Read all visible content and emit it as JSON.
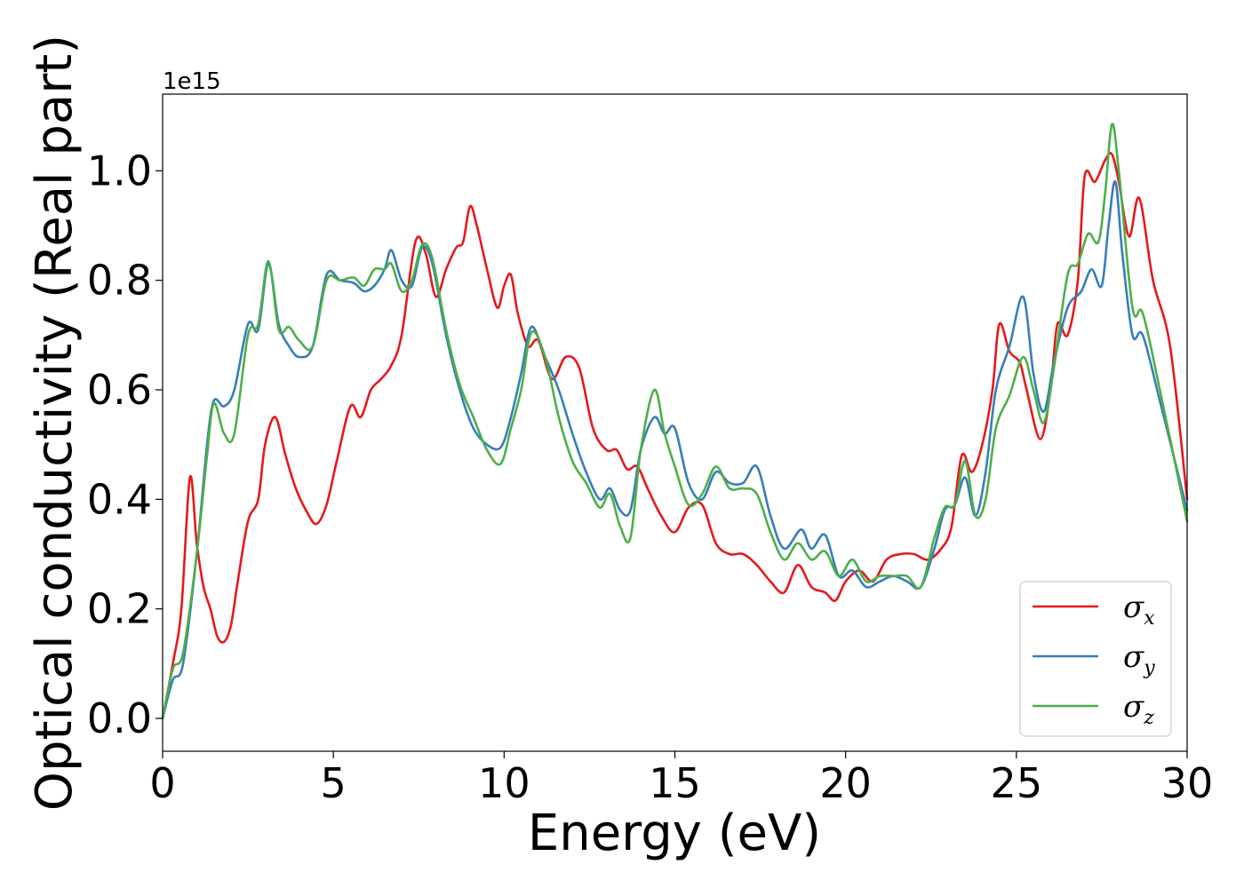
{
  "chart_data": {
    "type": "line",
    "title": "",
    "xlabel": "Energy (eV)",
    "ylabel": "Optical conductivity (Real part)",
    "y_offset_label": "1e15",
    "xlim": [
      0,
      30
    ],
    "ylim": [
      -0.06,
      1.14
    ],
    "x_ticks": [
      0,
      5,
      10,
      15,
      20,
      25,
      30
    ],
    "x_tick_labels": [
      "0",
      "5",
      "10",
      "15",
      "20",
      "25",
      "30"
    ],
    "y_ticks": [
      0.0,
      0.2,
      0.4,
      0.6,
      0.8,
      1.0
    ],
    "y_tick_labels": [
      "0.0",
      "0.2",
      "0.4",
      "0.6",
      "0.8",
      "1.0"
    ],
    "grid": false,
    "legend_position": "bottom-right",
    "series": [
      {
        "name": "σx",
        "legend_symbol": "σ",
        "legend_subscript": "x",
        "color": "#e41a1c",
        "points": [
          [
            0,
            0.0
          ],
          [
            0.3,
            0.1
          ],
          [
            0.55,
            0.2
          ],
          [
            0.8,
            0.44
          ],
          [
            1.0,
            0.32
          ],
          [
            1.2,
            0.24
          ],
          [
            1.4,
            0.2
          ],
          [
            1.6,
            0.15
          ],
          [
            1.8,
            0.14
          ],
          [
            2.0,
            0.17
          ],
          [
            2.2,
            0.25
          ],
          [
            2.5,
            0.36
          ],
          [
            2.8,
            0.4
          ],
          [
            3.0,
            0.5
          ],
          [
            3.3,
            0.55
          ],
          [
            3.6,
            0.48
          ],
          [
            3.9,
            0.42
          ],
          [
            4.2,
            0.38
          ],
          [
            4.5,
            0.355
          ],
          [
            4.8,
            0.39
          ],
          [
            5.1,
            0.47
          ],
          [
            5.5,
            0.57
          ],
          [
            5.8,
            0.55
          ],
          [
            6.1,
            0.6
          ],
          [
            6.4,
            0.62
          ],
          [
            6.7,
            0.645
          ],
          [
            7.0,
            0.7
          ],
          [
            7.4,
            0.87
          ],
          [
            7.7,
            0.85
          ],
          [
            8.0,
            0.77
          ],
          [
            8.3,
            0.82
          ],
          [
            8.6,
            0.86
          ],
          [
            8.8,
            0.87
          ],
          [
            9.0,
            0.935
          ],
          [
            9.2,
            0.9
          ],
          [
            9.5,
            0.82
          ],
          [
            9.8,
            0.75
          ],
          [
            10.0,
            0.79
          ],
          [
            10.2,
            0.81
          ],
          [
            10.4,
            0.74
          ],
          [
            10.7,
            0.68
          ],
          [
            11.0,
            0.69
          ],
          [
            11.4,
            0.62
          ],
          [
            11.8,
            0.66
          ],
          [
            12.2,
            0.64
          ],
          [
            12.6,
            0.53
          ],
          [
            13.0,
            0.49
          ],
          [
            13.3,
            0.49
          ],
          [
            13.6,
            0.455
          ],
          [
            13.9,
            0.46
          ],
          [
            14.2,
            0.42
          ],
          [
            14.6,
            0.37
          ],
          [
            15.0,
            0.34
          ],
          [
            15.4,
            0.385
          ],
          [
            15.8,
            0.39
          ],
          [
            16.2,
            0.32
          ],
          [
            16.6,
            0.3
          ],
          [
            17.0,
            0.3
          ],
          [
            17.4,
            0.28
          ],
          [
            17.8,
            0.25
          ],
          [
            18.2,
            0.23
          ],
          [
            18.6,
            0.28
          ],
          [
            19.0,
            0.24
          ],
          [
            19.4,
            0.23
          ],
          [
            19.7,
            0.215
          ],
          [
            20.0,
            0.25
          ],
          [
            20.4,
            0.27
          ],
          [
            20.8,
            0.25
          ],
          [
            21.2,
            0.29
          ],
          [
            21.6,
            0.3
          ],
          [
            22.0,
            0.3
          ],
          [
            22.4,
            0.29
          ],
          [
            22.8,
            0.31
          ],
          [
            23.1,
            0.35
          ],
          [
            23.4,
            0.48
          ],
          [
            23.7,
            0.45
          ],
          [
            24.0,
            0.5
          ],
          [
            24.3,
            0.6
          ],
          [
            24.5,
            0.72
          ],
          [
            24.8,
            0.67
          ],
          [
            25.1,
            0.65
          ],
          [
            25.3,
            0.6
          ],
          [
            25.7,
            0.51
          ],
          [
            26.0,
            0.6
          ],
          [
            26.2,
            0.72
          ],
          [
            26.5,
            0.7
          ],
          [
            26.8,
            0.8
          ],
          [
            27.0,
            0.99
          ],
          [
            27.3,
            0.98
          ],
          [
            27.6,
            1.02
          ],
          [
            27.8,
            1.03
          ],
          [
            28.0,
            0.98
          ],
          [
            28.3,
            0.88
          ],
          [
            28.6,
            0.95
          ],
          [
            29.0,
            0.8
          ],
          [
            29.5,
            0.68
          ],
          [
            30.0,
            0.4
          ]
        ]
      },
      {
        "name": "σy",
        "legend_symbol": "σ",
        "legend_subscript": "y",
        "color": "#377eb8",
        "points": [
          [
            0,
            0.0
          ],
          [
            0.3,
            0.07
          ],
          [
            0.6,
            0.1
          ],
          [
            1.0,
            0.3
          ],
          [
            1.3,
            0.5
          ],
          [
            1.5,
            0.58
          ],
          [
            1.8,
            0.57
          ],
          [
            2.1,
            0.6
          ],
          [
            2.5,
            0.72
          ],
          [
            2.8,
            0.71
          ],
          [
            3.1,
            0.83
          ],
          [
            3.4,
            0.72
          ],
          [
            3.7,
            0.68
          ],
          [
            4.0,
            0.66
          ],
          [
            4.4,
            0.68
          ],
          [
            4.8,
            0.81
          ],
          [
            5.2,
            0.8
          ],
          [
            5.6,
            0.795
          ],
          [
            5.9,
            0.78
          ],
          [
            6.2,
            0.79
          ],
          [
            6.5,
            0.82
          ],
          [
            6.7,
            0.855
          ],
          [
            7.0,
            0.8
          ],
          [
            7.3,
            0.79
          ],
          [
            7.6,
            0.86
          ],
          [
            7.9,
            0.83
          ],
          [
            8.3,
            0.7
          ],
          [
            8.7,
            0.6
          ],
          [
            9.1,
            0.53
          ],
          [
            9.5,
            0.5
          ],
          [
            9.9,
            0.495
          ],
          [
            10.2,
            0.55
          ],
          [
            10.5,
            0.63
          ],
          [
            10.8,
            0.715
          ],
          [
            11.2,
            0.66
          ],
          [
            11.6,
            0.6
          ],
          [
            12.0,
            0.52
          ],
          [
            12.4,
            0.45
          ],
          [
            12.8,
            0.4
          ],
          [
            13.1,
            0.42
          ],
          [
            13.4,
            0.38
          ],
          [
            13.7,
            0.38
          ],
          [
            14.0,
            0.49
          ],
          [
            14.4,
            0.55
          ],
          [
            14.7,
            0.52
          ],
          [
            15.0,
            0.53
          ],
          [
            15.4,
            0.43
          ],
          [
            15.8,
            0.4
          ],
          [
            16.2,
            0.45
          ],
          [
            16.6,
            0.43
          ],
          [
            17.0,
            0.43
          ],
          [
            17.4,
            0.46
          ],
          [
            17.8,
            0.37
          ],
          [
            18.2,
            0.31
          ],
          [
            18.7,
            0.345
          ],
          [
            19.0,
            0.31
          ],
          [
            19.4,
            0.335
          ],
          [
            19.8,
            0.26
          ],
          [
            20.2,
            0.27
          ],
          [
            20.6,
            0.24
          ],
          [
            21.0,
            0.25
          ],
          [
            21.4,
            0.26
          ],
          [
            21.8,
            0.25
          ],
          [
            22.2,
            0.24
          ],
          [
            22.6,
            0.31
          ],
          [
            22.9,
            0.38
          ],
          [
            23.2,
            0.39
          ],
          [
            23.5,
            0.44
          ],
          [
            23.8,
            0.37
          ],
          [
            24.1,
            0.45
          ],
          [
            24.4,
            0.6
          ],
          [
            24.8,
            0.68
          ],
          [
            25.2,
            0.77
          ],
          [
            25.5,
            0.63
          ],
          [
            25.8,
            0.56
          ],
          [
            26.1,
            0.65
          ],
          [
            26.5,
            0.75
          ],
          [
            26.9,
            0.78
          ],
          [
            27.2,
            0.82
          ],
          [
            27.5,
            0.79
          ],
          [
            27.7,
            0.9
          ],
          [
            27.9,
            0.98
          ],
          [
            28.1,
            0.85
          ],
          [
            28.4,
            0.7
          ],
          [
            28.7,
            0.7
          ],
          [
            29.2,
            0.58
          ],
          [
            30.0,
            0.38
          ]
        ]
      },
      {
        "name": "σz",
        "legend_symbol": "σ",
        "legend_subscript": "z",
        "color": "#4daf4a",
        "points": [
          [
            0,
            0.0
          ],
          [
            0.3,
            0.09
          ],
          [
            0.6,
            0.12
          ],
          [
            1.0,
            0.3
          ],
          [
            1.3,
            0.48
          ],
          [
            1.5,
            0.575
          ],
          [
            1.8,
            0.52
          ],
          [
            2.1,
            0.52
          ],
          [
            2.5,
            0.7
          ],
          [
            2.8,
            0.72
          ],
          [
            3.1,
            0.835
          ],
          [
            3.4,
            0.71
          ],
          [
            3.7,
            0.715
          ],
          [
            4.0,
            0.69
          ],
          [
            4.4,
            0.68
          ],
          [
            4.8,
            0.8
          ],
          [
            5.2,
            0.8
          ],
          [
            5.6,
            0.805
          ],
          [
            5.9,
            0.79
          ],
          [
            6.2,
            0.82
          ],
          [
            6.5,
            0.82
          ],
          [
            6.7,
            0.83
          ],
          [
            7.0,
            0.78
          ],
          [
            7.3,
            0.8
          ],
          [
            7.6,
            0.865
          ],
          [
            7.9,
            0.84
          ],
          [
            8.3,
            0.71
          ],
          [
            8.7,
            0.61
          ],
          [
            9.1,
            0.55
          ],
          [
            9.5,
            0.49
          ],
          [
            9.9,
            0.465
          ],
          [
            10.2,
            0.53
          ],
          [
            10.5,
            0.6
          ],
          [
            10.8,
            0.705
          ],
          [
            11.2,
            0.66
          ],
          [
            11.6,
            0.55
          ],
          [
            12.0,
            0.47
          ],
          [
            12.4,
            0.43
          ],
          [
            12.8,
            0.385
          ],
          [
            13.1,
            0.41
          ],
          [
            13.4,
            0.35
          ],
          [
            13.7,
            0.33
          ],
          [
            14.0,
            0.49
          ],
          [
            14.4,
            0.6
          ],
          [
            14.7,
            0.52
          ],
          [
            15.0,
            0.46
          ],
          [
            15.4,
            0.39
          ],
          [
            15.8,
            0.41
          ],
          [
            16.2,
            0.46
          ],
          [
            16.6,
            0.42
          ],
          [
            17.0,
            0.42
          ],
          [
            17.4,
            0.41
          ],
          [
            17.8,
            0.34
          ],
          [
            18.2,
            0.29
          ],
          [
            18.6,
            0.32
          ],
          [
            19.0,
            0.29
          ],
          [
            19.4,
            0.305
          ],
          [
            19.8,
            0.26
          ],
          [
            20.2,
            0.29
          ],
          [
            20.6,
            0.25
          ],
          [
            21.0,
            0.26
          ],
          [
            21.4,
            0.26
          ],
          [
            21.8,
            0.26
          ],
          [
            22.2,
            0.24
          ],
          [
            22.6,
            0.33
          ],
          [
            22.9,
            0.385
          ],
          [
            23.2,
            0.39
          ],
          [
            23.5,
            0.47
          ],
          [
            23.8,
            0.37
          ],
          [
            24.1,
            0.4
          ],
          [
            24.4,
            0.53
          ],
          [
            24.8,
            0.59
          ],
          [
            25.2,
            0.66
          ],
          [
            25.5,
            0.6
          ],
          [
            25.8,
            0.54
          ],
          [
            26.1,
            0.64
          ],
          [
            26.5,
            0.81
          ],
          [
            26.8,
            0.83
          ],
          [
            27.1,
            0.885
          ],
          [
            27.4,
            0.87
          ],
          [
            27.6,
            0.96
          ],
          [
            27.8,
            1.085
          ],
          [
            28.0,
            1.0
          ],
          [
            28.4,
            0.75
          ],
          [
            28.7,
            0.74
          ],
          [
            29.2,
            0.6
          ],
          [
            30.0,
            0.36
          ]
        ]
      }
    ]
  }
}
